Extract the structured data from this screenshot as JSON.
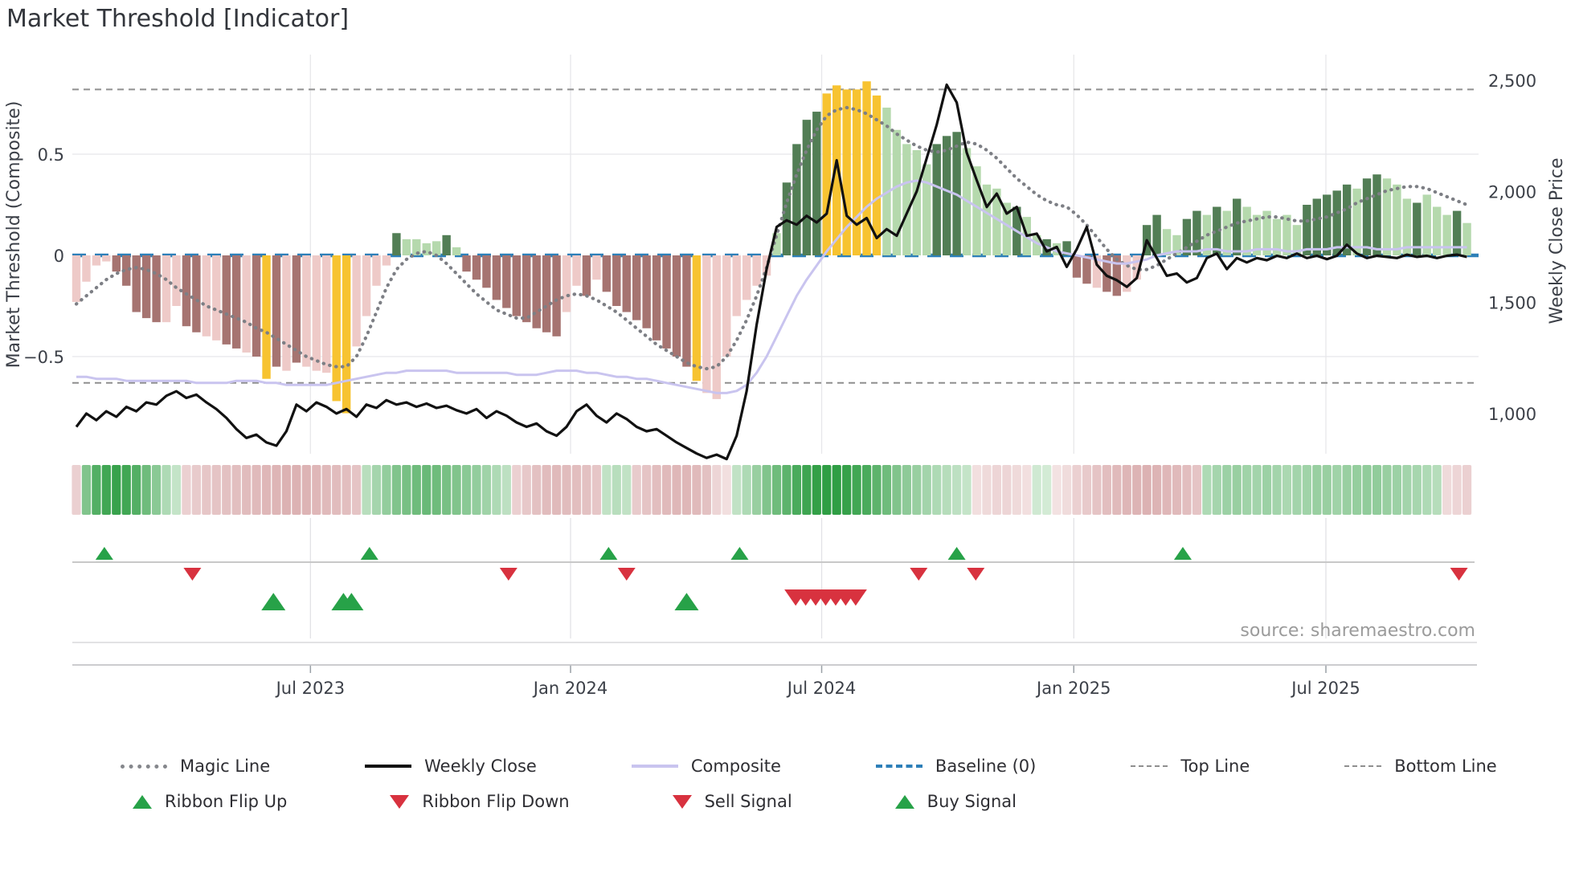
{
  "title": "Market Threshold [Indicator]",
  "source": "source: sharemaestro.com",
  "axes": {
    "left_label": "Market Threshold (Composite)",
    "right_label": "Weekly Close Price",
    "left_ticks": [
      {
        "value": 0.5,
        "label": "0.5"
      },
      {
        "value": 0,
        "label": "0"
      },
      {
        "value": -0.5,
        "label": "−0.5"
      }
    ],
    "right_ticks": [
      {
        "value": 2500,
        "label": "2,500"
      },
      {
        "value": 2000,
        "label": "2,000"
      },
      {
        "value": 1500,
        "label": "1,500"
      },
      {
        "value": 1000,
        "label": "1,000"
      }
    ],
    "x_ticks": [
      {
        "week": 23.4,
        "label": "Jul 2023"
      },
      {
        "week": 49.4,
        "label": "Jan 2024"
      },
      {
        "week": 74.5,
        "label": "Jul 2024"
      },
      {
        "week": 99.7,
        "label": "Jan 2025"
      },
      {
        "week": 124.9,
        "label": "Jul 2025"
      }
    ]
  },
  "colors": {
    "bar_key": {
      "P": "#eecac8",
      "R": "#a67471",
      "Y": "#f7c331",
      "L": "#b5d9ad",
      "G": "#527e55"
    },
    "magic_line": "#7d7f85",
    "weekly_close": "#111111",
    "composite": "#c9c4ef",
    "baseline": "#2d7fb8",
    "guide_lines": "#8f8f8f",
    "flip_up": "#27a248",
    "flip_down": "#d8323f",
    "grid": "#e7e7ea"
  },
  "chart_data": {
    "type": "combo",
    "weeks": 140,
    "x_tick_labels": [
      "Jul 2023",
      "Jan 2024",
      "Jul 2024",
      "Jan 2025",
      "Jul 2025"
    ],
    "left_axis": {
      "label": "Market Threshold (Composite)",
      "ticks": [
        0.5,
        0,
        -0.5
      ],
      "baseline": 0,
      "top_line": 0.82,
      "bottom_line": -0.63,
      "ylim": [
        -1.0,
        1.0
      ]
    },
    "right_axis": {
      "label": "Weekly Close Price",
      "ticks": [
        2500,
        2000,
        1500,
        1000
      ],
      "ylim": [
        800,
        2520
      ]
    },
    "bars": {
      "name": "Market Threshold",
      "colors": "PPPPRRRRRPPRRPPRRPRYRPRPPPYYPPPPGLLLLGLRRRRRRRRRRPPRPRRRRRRRRRYPPPPPPPLGGGGYYYYYYLLLLLGGGLLLLLGLLGLGRRPRRPPGGLLGGLGLGLLLLLLGGGGGLGGLLLGLLLGL",
      "values": [
        -0.23,
        -0.13,
        -0.05,
        -0.03,
        -0.08,
        -0.15,
        -0.28,
        -0.31,
        -0.33,
        -0.33,
        -0.25,
        -0.35,
        -0.38,
        -0.4,
        -0.42,
        -0.44,
        -0.46,
        -0.48,
        -0.5,
        -0.61,
        -0.55,
        -0.57,
        -0.53,
        -0.55,
        -0.57,
        -0.58,
        -0.72,
        -0.78,
        -0.45,
        -0.3,
        -0.15,
        -0.05,
        0.11,
        0.08,
        0.08,
        0.06,
        0.07,
        0.1,
        0.04,
        -0.08,
        -0.12,
        -0.16,
        -0.22,
        -0.26,
        -0.3,
        -0.33,
        -0.36,
        -0.38,
        -0.4,
        -0.28,
        -0.15,
        -0.2,
        -0.12,
        -0.18,
        -0.25,
        -0.28,
        -0.32,
        -0.36,
        -0.42,
        -0.46,
        -0.5,
        -0.55,
        -0.62,
        -0.68,
        -0.71,
        -0.5,
        -0.3,
        -0.22,
        -0.15,
        -0.1,
        0.11,
        0.36,
        0.55,
        0.67,
        0.71,
        0.8,
        0.84,
        0.82,
        0.82,
        0.86,
        0.79,
        0.73,
        0.62,
        0.55,
        0.52,
        0.45,
        0.55,
        0.59,
        0.61,
        0.53,
        0.44,
        0.35,
        0.33,
        0.26,
        0.24,
        0.19,
        0.1,
        0.08,
        0.06,
        0.07,
        -0.11,
        -0.14,
        -0.16,
        -0.18,
        -0.2,
        -0.18,
        -0.12,
        0.15,
        0.2,
        0.13,
        0.1,
        0.18,
        0.22,
        0.2,
        0.24,
        0.22,
        0.28,
        0.24,
        0.2,
        0.22,
        0.18,
        0.2,
        0.15,
        0.25,
        0.28,
        0.3,
        0.32,
        0.35,
        0.33,
        0.38,
        0.4,
        0.38,
        0.35,
        0.28,
        0.26,
        0.3,
        0.24,
        0.2,
        0.22,
        0.16
      ]
    },
    "series": [
      {
        "name": "Magic Line",
        "style": "dotted-gray",
        "axis": "left",
        "values": [
          -0.24,
          -0.2,
          -0.16,
          -0.12,
          -0.09,
          -0.07,
          -0.06,
          -0.07,
          -0.09,
          -0.12,
          -0.16,
          -0.19,
          -0.22,
          -0.25,
          -0.27,
          -0.29,
          -0.31,
          -0.33,
          -0.36,
          -0.38,
          -0.41,
          -0.44,
          -0.47,
          -0.5,
          -0.52,
          -0.54,
          -0.55,
          -0.55,
          -0.5,
          -0.4,
          -0.28,
          -0.16,
          -0.07,
          -0.02,
          0.01,
          0.02,
          0.0,
          -0.04,
          -0.09,
          -0.14,
          -0.19,
          -0.23,
          -0.27,
          -0.29,
          -0.31,
          -0.31,
          -0.28,
          -0.25,
          -0.22,
          -0.2,
          -0.19,
          -0.2,
          -0.22,
          -0.25,
          -0.28,
          -0.32,
          -0.36,
          -0.4,
          -0.44,
          -0.47,
          -0.5,
          -0.53,
          -0.55,
          -0.56,
          -0.55,
          -0.5,
          -0.42,
          -0.32,
          -0.2,
          -0.06,
          0.1,
          0.26,
          0.4,
          0.52,
          0.62,
          0.69,
          0.72,
          0.73,
          0.72,
          0.7,
          0.67,
          0.64,
          0.6,
          0.57,
          0.54,
          0.52,
          0.51,
          0.52,
          0.54,
          0.56,
          0.55,
          0.52,
          0.48,
          0.43,
          0.38,
          0.34,
          0.3,
          0.27,
          0.25,
          0.24,
          0.2,
          0.15,
          0.09,
          0.03,
          -0.02,
          -0.05,
          -0.07,
          -0.07,
          -0.05,
          -0.02,
          0.01,
          0.04,
          0.07,
          0.1,
          0.12,
          0.14,
          0.16,
          0.17,
          0.18,
          0.19,
          0.19,
          0.18,
          0.17,
          0.17,
          0.18,
          0.19,
          0.21,
          0.23,
          0.26,
          0.28,
          0.3,
          0.32,
          0.33,
          0.34,
          0.34,
          0.33,
          0.31,
          0.29,
          0.27,
          0.25
        ]
      },
      {
        "name": "Composite",
        "style": "solid-lavender",
        "axis": "left",
        "values": [
          -0.6,
          -0.6,
          -0.61,
          -0.61,
          -0.61,
          -0.62,
          -0.62,
          -0.62,
          -0.62,
          -0.62,
          -0.62,
          -0.62,
          -0.63,
          -0.63,
          -0.63,
          -0.63,
          -0.62,
          -0.62,
          -0.62,
          -0.63,
          -0.63,
          -0.64,
          -0.64,
          -0.64,
          -0.64,
          -0.64,
          -0.63,
          -0.62,
          -0.61,
          -0.6,
          -0.59,
          -0.58,
          -0.58,
          -0.57,
          -0.57,
          -0.57,
          -0.57,
          -0.57,
          -0.58,
          -0.58,
          -0.58,
          -0.58,
          -0.58,
          -0.58,
          -0.59,
          -0.59,
          -0.59,
          -0.58,
          -0.57,
          -0.57,
          -0.57,
          -0.58,
          -0.58,
          -0.59,
          -0.6,
          -0.6,
          -0.61,
          -0.61,
          -0.62,
          -0.63,
          -0.64,
          -0.65,
          -0.66,
          -0.67,
          -0.68,
          -0.68,
          -0.67,
          -0.64,
          -0.58,
          -0.5,
          -0.4,
          -0.3,
          -0.2,
          -0.12,
          -0.05,
          0.02,
          0.08,
          0.14,
          0.19,
          0.24,
          0.28,
          0.31,
          0.34,
          0.36,
          0.37,
          0.36,
          0.34,
          0.32,
          0.3,
          0.27,
          0.24,
          0.21,
          0.18,
          0.15,
          0.12,
          0.09,
          0.06,
          0.04,
          0.02,
          0.01,
          0.0,
          -0.01,
          -0.02,
          -0.03,
          -0.04,
          -0.04,
          -0.03,
          -0.02,
          0.0,
          0.01,
          0.02,
          0.02,
          0.02,
          0.03,
          0.03,
          0.02,
          0.02,
          0.02,
          0.03,
          0.03,
          0.03,
          0.02,
          0.02,
          0.03,
          0.03,
          0.03,
          0.04,
          0.04,
          0.04,
          0.04,
          0.03,
          0.03,
          0.03,
          0.04,
          0.04,
          0.04,
          0.04,
          0.04,
          0.04,
          0.04
        ]
      },
      {
        "name": "Weekly Close",
        "style": "solid-black",
        "axis": "right",
        "values": [
          940,
          1000,
          970,
          1010,
          985,
          1030,
          1010,
          1050,
          1040,
          1080,
          1100,
          1070,
          1085,
          1050,
          1020,
          980,
          930,
          890,
          905,
          870,
          855,
          920,
          1040,
          1010,
          1050,
          1030,
          1000,
          1020,
          985,
          1040,
          1025,
          1060,
          1040,
          1050,
          1030,
          1045,
          1025,
          1035,
          1015,
          1000,
          1020,
          980,
          1010,
          990,
          960,
          940,
          955,
          920,
          900,
          940,
          1010,
          1040,
          990,
          960,
          1000,
          975,
          940,
          920,
          930,
          900,
          870,
          845,
          820,
          800,
          815,
          795,
          900,
          1100,
          1400,
          1650,
          1840,
          1870,
          1850,
          1890,
          1860,
          1900,
          2140,
          1890,
          1850,
          1880,
          1790,
          1830,
          1800,
          1900,
          2000,
          2150,
          2300,
          2480,
          2400,
          2175,
          2050,
          1930,
          1990,
          1900,
          1930,
          1800,
          1810,
          1730,
          1750,
          1660,
          1740,
          1840,
          1670,
          1620,
          1600,
          1570,
          1610,
          1780,
          1700,
          1620,
          1630,
          1590,
          1610,
          1700,
          1720,
          1650,
          1700,
          1680,
          1700,
          1690,
          1710,
          1700,
          1720,
          1700,
          1710,
          1695,
          1710,
          1760,
          1720,
          1700,
          1710,
          1705,
          1700,
          1715,
          1705,
          1710,
          1700,
          1710,
          1715,
          1705
        ]
      }
    ],
    "ribbon": {
      "name": "Ribbon (green=positive, red=negative, magnitude=intensity)",
      "values": [
        -0.3,
        0.55,
        0.8,
        0.9,
        0.95,
        0.9,
        0.8,
        0.65,
        0.5,
        0.3,
        0.18,
        -0.3,
        -0.35,
        -0.4,
        -0.42,
        -0.45,
        -0.47,
        -0.5,
        -0.52,
        -0.55,
        -0.57,
        -0.6,
        -0.6,
        -0.58,
        -0.55,
        -0.52,
        -0.5,
        -0.48,
        -0.42,
        0.25,
        0.35,
        0.45,
        0.55,
        0.6,
        0.65,
        0.68,
        0.65,
        0.6,
        0.55,
        0.5,
        0.45,
        0.38,
        0.3,
        0.22,
        -0.3,
        -0.38,
        -0.45,
        -0.5,
        -0.52,
        -0.5,
        -0.48,
        -0.45,
        -0.4,
        0.2,
        0.25,
        0.2,
        -0.35,
        -0.42,
        -0.48,
        -0.52,
        -0.55,
        -0.55,
        -0.52,
        -0.45,
        -0.25,
        -0.15,
        0.2,
        0.3,
        0.42,
        0.55,
        0.65,
        0.75,
        0.85,
        0.92,
        0.98,
        1.0,
        1.0,
        0.96,
        0.9,
        0.85,
        0.75,
        0.65,
        0.55,
        0.48,
        0.42,
        0.36,
        0.3,
        0.26,
        0.22,
        0.18,
        -0.15,
        -0.2,
        -0.25,
        -0.25,
        -0.2,
        -0.15,
        0.12,
        0.1,
        -0.12,
        -0.18,
        -0.3,
        -0.36,
        -0.42,
        -0.48,
        -0.52,
        -0.56,
        -0.58,
        -0.6,
        -0.58,
        -0.55,
        -0.52,
        -0.48,
        -0.42,
        0.3,
        0.35,
        0.4,
        0.42,
        0.38,
        0.36,
        0.4,
        0.36,
        0.32,
        0.36,
        0.38,
        0.42,
        0.42,
        0.38,
        0.42,
        0.44,
        0.46,
        0.46,
        0.42,
        0.4,
        0.36,
        0.34,
        0.3,
        0.26,
        -0.2,
        -0.25,
        -0.3
      ]
    },
    "markers": {
      "ribbon_flip_up_weeks": [
        2.8,
        29.3,
        53.2,
        66.3,
        88.0,
        110.6
      ],
      "ribbon_flip_down_weeks": [
        11.6,
        43.2,
        55.0,
        84.2,
        89.9,
        138.2
      ],
      "buy_signal_weeks": [
        19.7,
        26.7,
        27.5,
        61.0
      ],
      "sell_signal_weeks": [
        71.9,
        72.9,
        73.9,
        74.9,
        75.9,
        76.9,
        77.9
      ]
    }
  },
  "legend": {
    "rows": [
      [
        {
          "label": "Magic Line",
          "swatch": "dotted-gray"
        },
        {
          "label": "Weekly Close",
          "swatch": "solid-black"
        },
        {
          "label": "Composite",
          "swatch": "solid-lavender"
        },
        {
          "label": "Baseline (0)",
          "swatch": "dashed-blue"
        },
        {
          "label": "Top Line",
          "swatch": "dashed-gray"
        },
        {
          "label": "Bottom Line",
          "swatch": "dashed-gray"
        }
      ],
      [
        {
          "label": "Ribbon Flip Up",
          "swatch": "triangle-up-green"
        },
        {
          "label": "Ribbon Flip Down",
          "swatch": "triangle-down-red"
        },
        {
          "label": "Sell Signal",
          "swatch": "triangle-down-red"
        },
        {
          "label": "Buy Signal",
          "swatch": "triangle-up-green"
        }
      ]
    ]
  }
}
